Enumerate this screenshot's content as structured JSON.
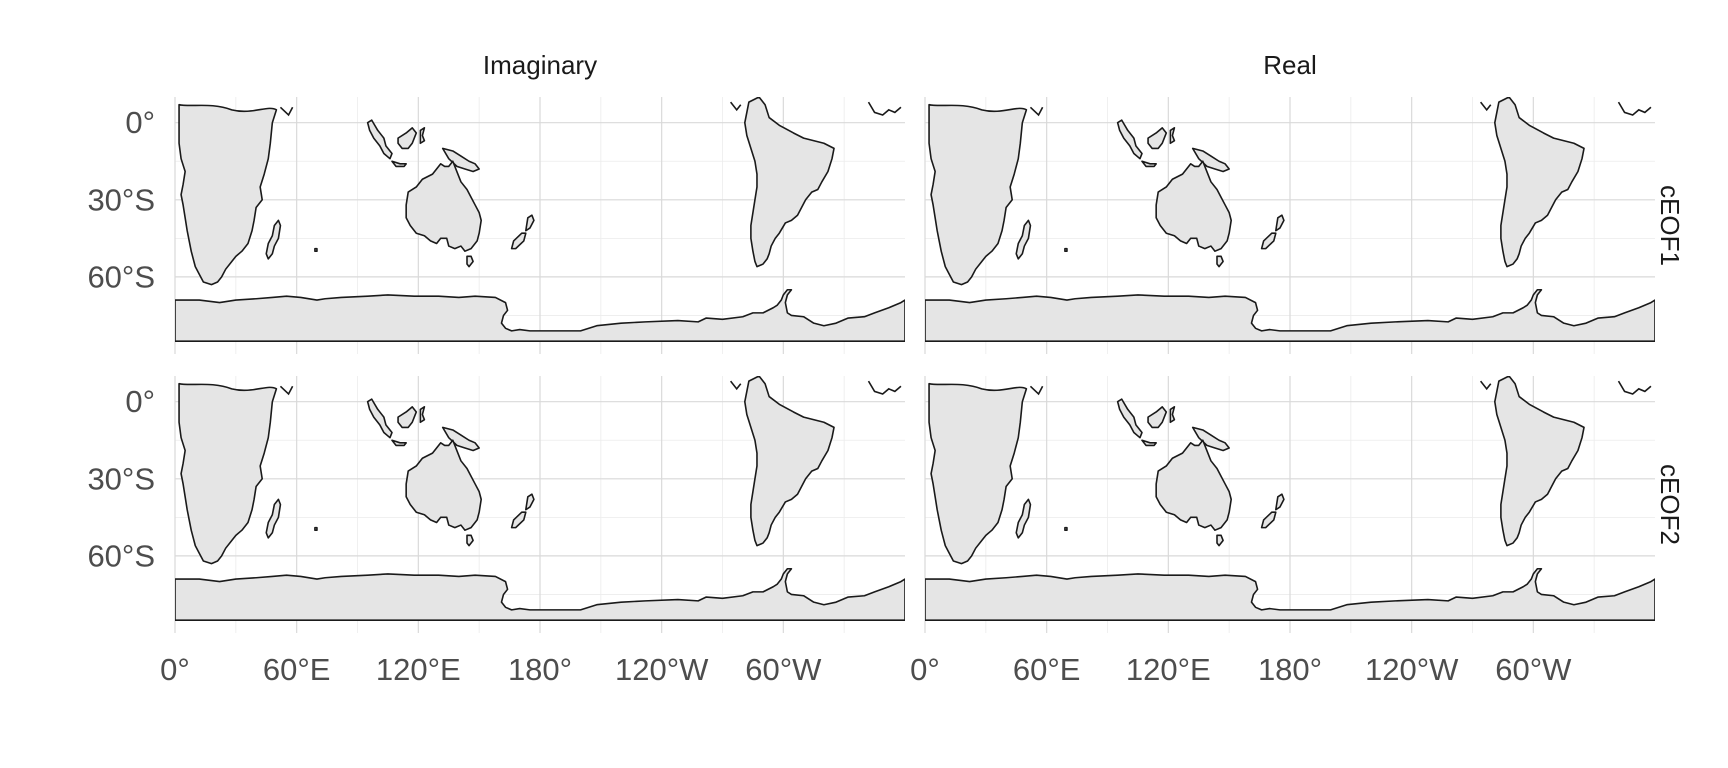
{
  "facets": {
    "columns": [
      "Imaginary",
      "Real"
    ],
    "rows": [
      "cEOF1",
      "cEOF2"
    ]
  },
  "axes": {
    "x_ticks": [
      {
        "lon": 0,
        "label": "0°"
      },
      {
        "lon": 60,
        "label": "60°E"
      },
      {
        "lon": 120,
        "label": "120°E"
      },
      {
        "lon": 180,
        "label": "180°"
      },
      {
        "lon": 240,
        "label": "120°W"
      },
      {
        "lon": 300,
        "label": "60°W"
      }
    ],
    "y_ticks": [
      {
        "lat": 0,
        "label": "0°"
      },
      {
        "lat": -30,
        "label": "30°S"
      },
      {
        "lat": -60,
        "label": "60°S"
      }
    ],
    "x_range": [
      0,
      360
    ],
    "y_range": [
      -90,
      10
    ]
  },
  "colors": {
    "land_fill": "#e5e5e5",
    "coastline": "#1a1a1a",
    "grid": "#d9d9d9",
    "panel_background": "#ffffff"
  }
}
